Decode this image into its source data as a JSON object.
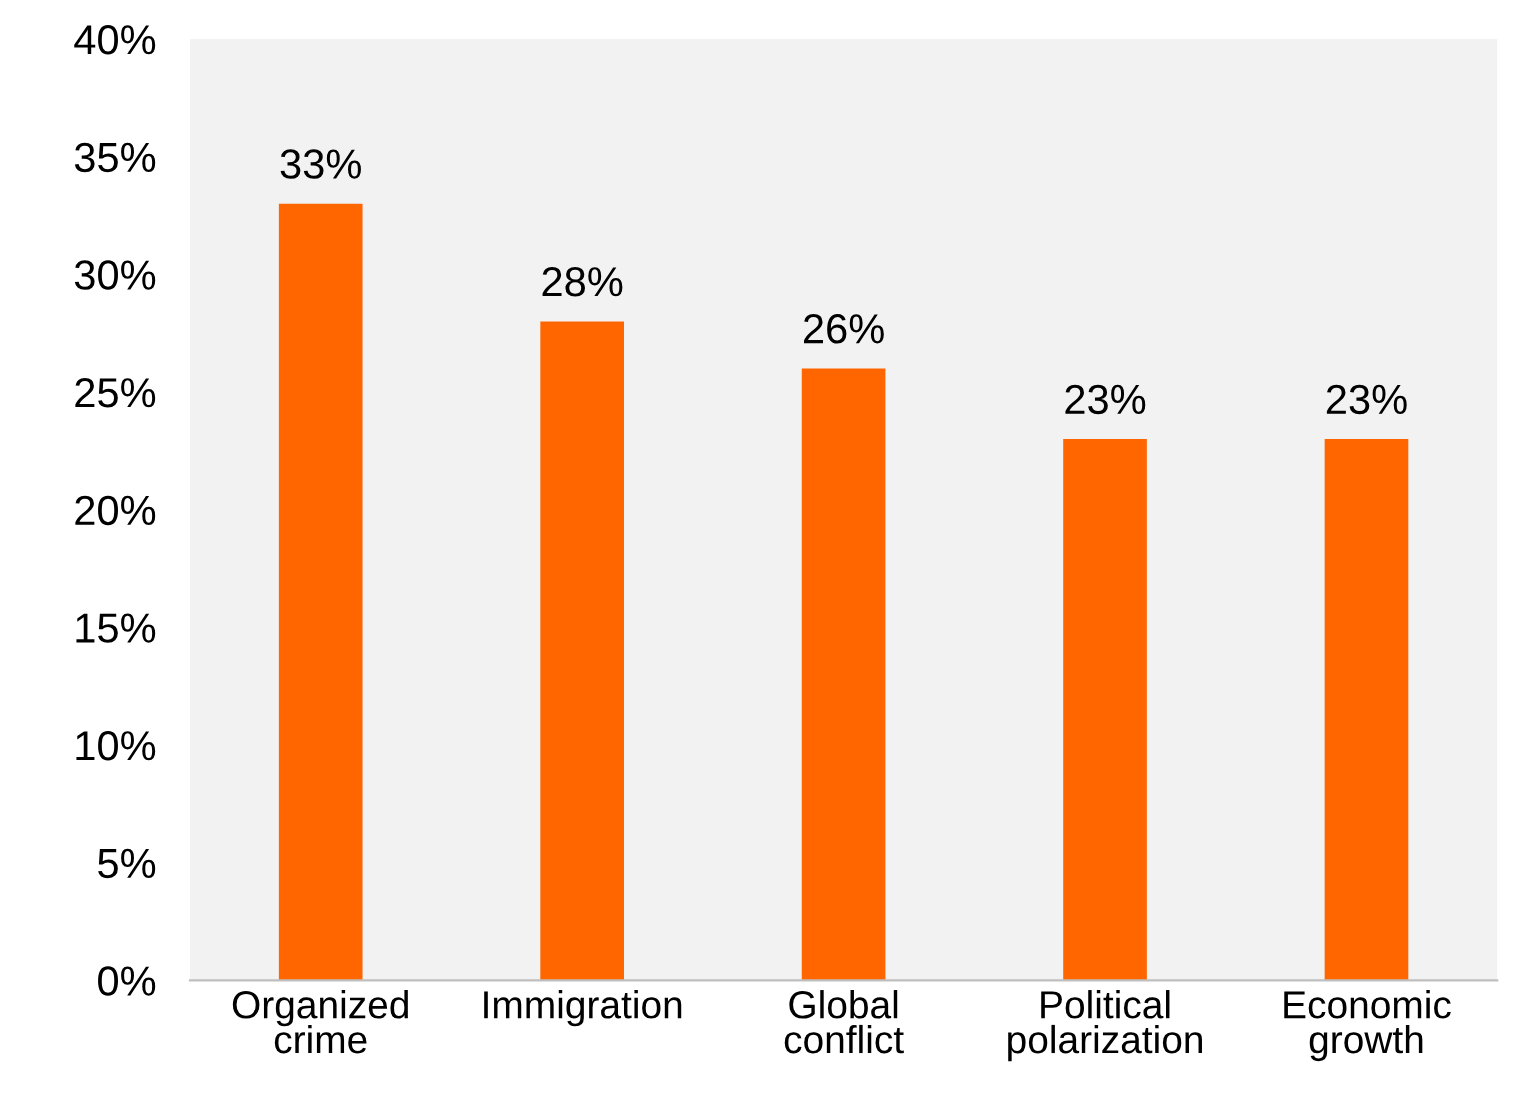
{
  "chart_data": {
    "type": "bar",
    "categories": [
      "Organized\ncrime",
      "Immigration",
      "Global\nconflict",
      "Political\npolarization",
      "Economic\ngrowth"
    ],
    "values": [
      33,
      28,
      26,
      23,
      23
    ],
    "color": "#ff6600",
    "value_labels": [
      "33%",
      "28%",
      "26%",
      "23%",
      "23%"
    ],
    "ylim": [
      0,
      40
    ],
    "yticks": [
      {
        "value": 0,
        "label": "0%"
      },
      {
        "value": 5,
        "label": "5%"
      },
      {
        "value": 10,
        "label": "10%"
      },
      {
        "value": 15,
        "label": "15%"
      },
      {
        "value": 20,
        "label": "20%"
      },
      {
        "value": 25,
        "label": "25%"
      },
      {
        "value": 30,
        "label": "30%"
      },
      {
        "value": 35,
        "label": "35%"
      },
      {
        "value": 40,
        "label": "40%"
      }
    ],
    "grid": false,
    "legend": false
  }
}
